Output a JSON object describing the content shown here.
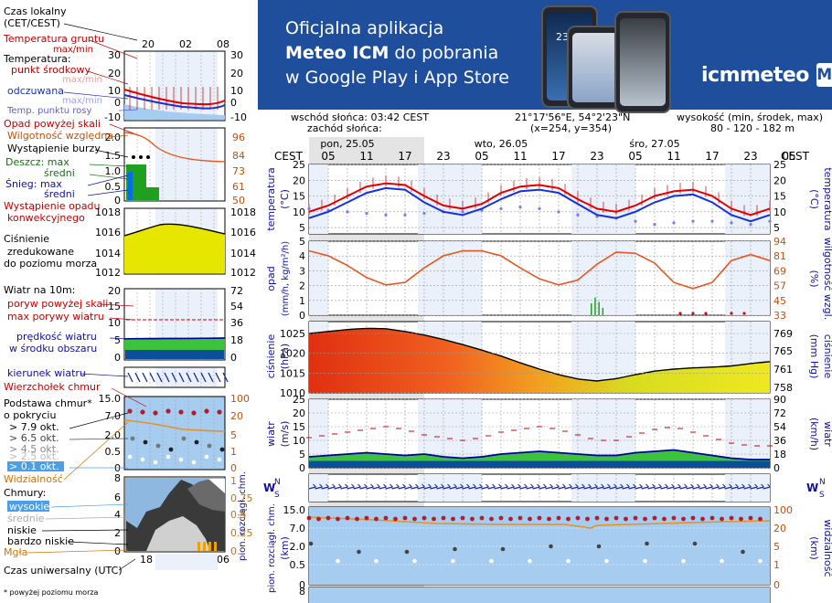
{
  "banner": {
    "line1": "Oficjalna aplikacja",
    "line2_bold": "Meteo ICM",
    "line2_rest": " do pobrania",
    "line3": "w Google Play i App Store",
    "logo_text": "icmmeteo",
    "logo_box": "M°",
    "phone_temp": "23°"
  },
  "info": {
    "sunrise": "wschód słońca: 03:42 CEST",
    "sunset": "zachód słońca:",
    "coords": "21°17'56\"E, 54°2'23\"N",
    "grid": "(x=254,  y=354)",
    "elevation_label": "wysokość (min, środek, max)",
    "elevation_values": "80 - 120 - 182 m"
  },
  "legend": {
    "local_time": "Czas lokalny",
    "local_time_sub": "(CET/CEST)",
    "local_ticks": [
      "20",
      "02",
      "08"
    ],
    "utc_time": "Czas uniwersalny (UTC)",
    "utc_ticks": [
      "18",
      "00",
      "06"
    ],
    "footnote": "* powyżej poziomu morza",
    "temp_ground": "Temperatura gruntu",
    "temp_ground_sub": "max/min",
    "temperature": "Temperatura:",
    "temp_center": "punkt środkowy",
    "temp_max_min": "max/min",
    "felt": "odczuwana",
    "felt_max_min": "max/min",
    "dew_point": "Temp. punktu rosy",
    "precip_over": "Opad powyżej skali",
    "humidity": "Wilgotność względna",
    "storm": "Wystąpienie burzy",
    "rain_max": "Deszcz: max",
    "rain_mid": "średni",
    "snow_max": "Śnieg:    max",
    "snow_mid": "średni",
    "convective": "Wystąpienie opadu",
    "convective_sub": "konwekcyjnego",
    "pressure": "Ciśnienie",
    "pressure_sub1": "zredukowane",
    "pressure_sub2": "do poziomu morza",
    "wind10": "Wiatr na 10m:",
    "gust_over": "poryw powyżej skali",
    "gust_max": "max porywy wiatru",
    "wind_avg": "prędkość wiatru",
    "wind_avg_sub": "w środku obszaru",
    "wind_dir": "kierunek wiatru",
    "cloud_top": "Wierzchołek chmur",
    "cloud_base": "Podstawa chmur*",
    "cloud_base_sub": "o pokryciu",
    "oct79": "> 7.9 okt.",
    "oct65": "> 6.5 okt.",
    "oct45": "> 4.5 okt.",
    "oct25": "> 2.5 okt.",
    "oct01": "> 0.1 okt.",
    "visibility": "Widzialność",
    "clouds": "Chmury:",
    "cl_high": "wysokie",
    "cl_mid": "średnie",
    "cl_low": "niskie",
    "cl_vlow": "bardzo niskie",
    "fog": "Mgła",
    "p1_left": [
      "30",
      "20",
      "10",
      "0",
      "-10"
    ],
    "p1_right": [
      "30",
      "20",
      "10",
      "0",
      "-10"
    ],
    "p2_left": [
      "2.0",
      "1.5",
      "1.0",
      "0.5",
      "0"
    ],
    "p2_right": [
      "96",
      "84",
      "73",
      "61",
      "50"
    ],
    "p3_left": [
      "1018",
      "1016",
      "1014",
      "1012"
    ],
    "p3_right": [
      "1018",
      "1016",
      "1014",
      "1012"
    ],
    "p4_left": [
      "20",
      "15",
      "10",
      "5",
      "0"
    ],
    "p4_right": [
      "72",
      "54",
      "36",
      "18",
      "0"
    ],
    "p6_left": [
      "15.0",
      "7.0",
      "2.0",
      "0.5",
      "0"
    ],
    "p6_right": [
      "100",
      "20",
      "5",
      "1",
      "0"
    ],
    "p7_left": [
      "8",
      "6",
      "4",
      "2",
      "0"
    ],
    "p7_right": [
      "1",
      "0.75",
      "0.5",
      "0.25",
      "0"
    ]
  },
  "main": {
    "cest_label": "CEST",
    "days": [
      "pon, 25.05",
      "wto, 26.05",
      "śro, 27.05"
    ],
    "hour_ticks": [
      "05",
      "11",
      "17",
      "23",
      "05",
      "11",
      "17",
      "23",
      "05",
      "11",
      "17",
      "23",
      "05"
    ],
    "p1_left_title": "temperatura",
    "p1_left_unit": "(°C)",
    "p1_right_title": "temperatura",
    "p1_right_unit": "(°C)",
    "p1_ticks": [
      "25",
      "20",
      "15",
      "10",
      "5"
    ],
    "p2_left_title": "opad",
    "p2_left_unit": "(mm/h, kg/m²/h)",
    "p2_right_title": "wilgotność wzgl.",
    "p2_right_unit": "(%)",
    "p2_left_ticks": [
      "5",
      "4",
      "3",
      "2",
      "1",
      "0"
    ],
    "p2_right_ticks": [
      "94",
      "81",
      "69",
      "57",
      "45",
      "33"
    ],
    "p3_left_title": "ciśnienie",
    "p3_left_unit": "(hPa)",
    "p3_right_title": "ciśnienie",
    "p3_right_unit": "(mm Hg)",
    "p3_left_ticks": [
      "1025",
      "1020",
      "1015",
      "1010"
    ],
    "p3_right_ticks": [
      "769",
      "765",
      "761",
      "758"
    ],
    "p4_left_title": "wiatr",
    "p4_left_unit": "(m/s)",
    "p4_right_title": "wiatr",
    "p4_right_unit": "(km/h)",
    "p4_left_ticks": [
      "25",
      "20",
      "15",
      "10",
      "5",
      "0"
    ],
    "p4_right_ticks": [
      "90",
      "72",
      "54",
      "36",
      "18",
      "0"
    ],
    "p5_labels": [
      "W",
      "S",
      "N",
      "E"
    ],
    "p6_left_title": "pion. rozciągł. chm.",
    "p6_left_unit": "(km)",
    "p6_right_title": "widzialność",
    "p6_right_unit": "(km)",
    "p6_left_ticks": [
      "15.0",
      "7.0",
      "2.0",
      "0.5",
      "0"
    ],
    "p6_right_ticks": [
      "100",
      "20",
      "5",
      "1",
      "0"
    ],
    "p7_tick": "8"
  },
  "colors": {
    "temp": "#e00000",
    "felt": "#1530e0",
    "dew": "#7a7af0",
    "humidity": "#e8561f",
    "pressure_high": "#e02010",
    "pressure_low": "#e6e600",
    "wind_fill": "#3cc23c",
    "sky": "#a6ccf0",
    "banner": "#1f4f9c"
  },
  "chart_data": [
    {
      "type": "line",
      "title": "temperatura",
      "ylabel": "(°C)",
      "x_hours": [
        0,
        3,
        6,
        9,
        12,
        15,
        18,
        21,
        24,
        27,
        30,
        33,
        36,
        39,
        42,
        45,
        48,
        51,
        54,
        57,
        60,
        63,
        66,
        69,
        72
      ],
      "series": [
        {
          "name": "temperatura",
          "values": [
            10,
            12,
            15,
            18,
            19,
            18.5,
            15,
            12,
            11,
            12.5,
            16,
            18,
            18.5,
            17.5,
            14,
            11,
            10,
            12,
            15,
            16.5,
            17,
            15,
            11,
            9,
            11
          ]
        },
        {
          "name": "odczuwana",
          "values": [
            8,
            10,
            13,
            16,
            17.5,
            17,
            13,
            10,
            9,
            11,
            14,
            16.5,
            17,
            16,
            12.5,
            9,
            8,
            10,
            13,
            15,
            15.5,
            13,
            9,
            7,
            9
          ]
        },
        {
          "name": "Temp. punktu rosy",
          "values": [
            11,
            10.5,
            10,
            9.5,
            9,
            9,
            9.5,
            10,
            10,
            10.5,
            11,
            11.5,
            11,
            10,
            9,
            8.5,
            8,
            7,
            6,
            6.5,
            7,
            7,
            6.5,
            6,
            7
          ]
        }
      ],
      "ylim": [
        3,
        25
      ]
    },
    {
      "type": "line",
      "title": "wilgotność wzgl.",
      "ylabel": "(%)",
      "x_hours": [
        0,
        3,
        6,
        9,
        12,
        15,
        18,
        21,
        24,
        27,
        30,
        33,
        36,
        39,
        42,
        45,
        48,
        51,
        54,
        57,
        60,
        63,
        66,
        69,
        72
      ],
      "series": [
        {
          "name": "wilgotność wzgl.",
          "values": [
            86,
            82,
            74,
            64,
            58,
            60,
            72,
            82,
            86,
            86,
            82,
            72,
            63,
            58,
            62,
            75,
            85,
            84,
            76,
            60,
            55,
            60,
            78,
            83,
            78
          ]
        }
      ],
      "ylim": [
        33,
        94
      ]
    },
    {
      "type": "area",
      "title": "ciśnienie",
      "ylabel": "(hPa)",
      "x_hours": [
        0,
        3,
        6,
        9,
        12,
        15,
        18,
        21,
        24,
        27,
        30,
        33,
        36,
        39,
        42,
        45,
        48,
        51,
        54,
        57,
        60,
        63,
        66,
        69,
        72
      ],
      "series": [
        {
          "name": "ciśnienie",
          "values": [
            1025,
            1025.5,
            1026,
            1026.3,
            1026.2,
            1025.5,
            1024.6,
            1023.5,
            1022.2,
            1020.8,
            1019.3,
            1017.6,
            1016,
            1014.6,
            1013.5,
            1013,
            1013.6,
            1014.6,
            1015.5,
            1016,
            1016.3,
            1016.5,
            1016.8,
            1017.4,
            1017.9
          ]
        }
      ],
      "ylim": [
        1010,
        1028
      ]
    },
    {
      "type": "area",
      "title": "wiatr",
      "ylabel": "(m/s)",
      "x_hours": [
        0,
        3,
        6,
        9,
        12,
        15,
        18,
        21,
        24,
        27,
        30,
        33,
        36,
        39,
        42,
        45,
        48,
        51,
        54,
        57,
        60,
        63,
        66,
        69,
        72
      ],
      "series": [
        {
          "name": "wiatr",
          "values": [
            4,
            4.5,
            5,
            5.5,
            5,
            4.5,
            5,
            4,
            3.5,
            4,
            5,
            5.5,
            6,
            5.5,
            5,
            4.5,
            4.5,
            5.5,
            6,
            6.5,
            5.5,
            4.5,
            3.5,
            3,
            3
          ]
        },
        {
          "name": "max porywy wiatru",
          "values": [
            11,
            12,
            13,
            14,
            15,
            14,
            12,
            11,
            10,
            11,
            13,
            14,
            15,
            14,
            12,
            10,
            10,
            12,
            14,
            15,
            13,
            11,
            9,
            8,
            8
          ]
        }
      ],
      "ylim": [
        0,
        25
      ]
    }
  ]
}
